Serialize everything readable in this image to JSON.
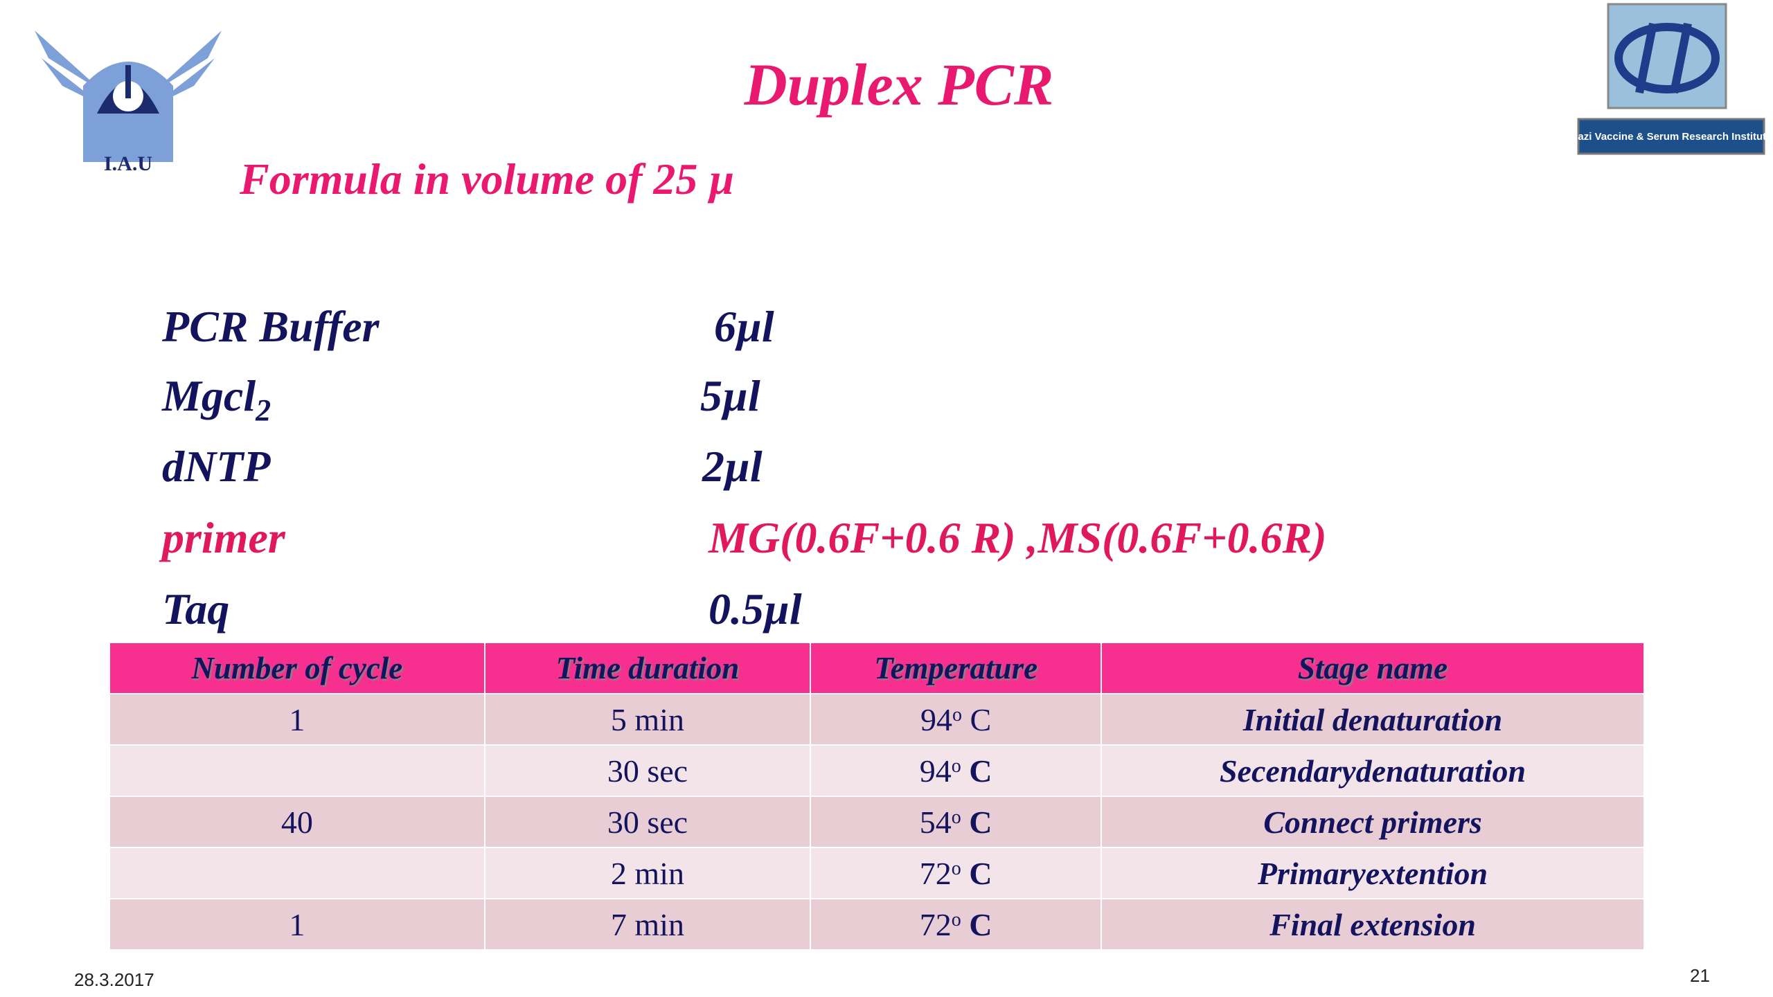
{
  "header": {
    "title": "Duplex PCR",
    "subtitle": "Formula in volume of 25 µ"
  },
  "logos": {
    "left": "I.A.U",
    "right": "Razi Vaccine & Serum Research Institute"
  },
  "reagents": [
    {
      "name": "PCR Buffer",
      "amount": "6µl"
    },
    {
      "name": "Mgcl",
      "subscript": "2",
      "amount": "5µl"
    },
    {
      "name": "dNTP",
      "amount": "2µl"
    },
    {
      "name": "primer",
      "amount": "MG(0.6F+0.6 R) ,MS(0.6F+0.6R)"
    },
    {
      "name": "Taq",
      "amount": "0.5µl"
    }
  ],
  "table": {
    "header": [
      "Number of cycle",
      "Time duration",
      "Temperature",
      "Stage name"
    ],
    "rows": [
      {
        "cycles": "1",
        "time": "5 min",
        "temp": {
          "num": "94",
          "sup": "o",
          "unit": "C"
        },
        "stage": "Initial denaturation"
      },
      {
        "cycles": null,
        "time": "30 sec",
        "temp": {
          "num": "94",
          "sup": "o",
          "unit": "C"
        },
        "stage": "Secendarydenaturation"
      },
      {
        "cycles": "40",
        "time": "30 sec",
        "temp": {
          "num": "54",
          "sup": "o",
          "unit": "C"
        },
        "stage": "Connect primers"
      },
      {
        "cycles": null,
        "time": "2 min",
        "temp": {
          "num": "72",
          "sup": "o",
          "unit": "C"
        },
        "stage": "Primaryextention"
      },
      {
        "cycles": "1",
        "time": "7 min",
        "temp": {
          "num": "72",
          "sup": "o",
          "unit": "C"
        },
        "stage": "Final extension"
      }
    ]
  },
  "footer": {
    "date": "28.3.2017",
    "page": "21"
  }
}
